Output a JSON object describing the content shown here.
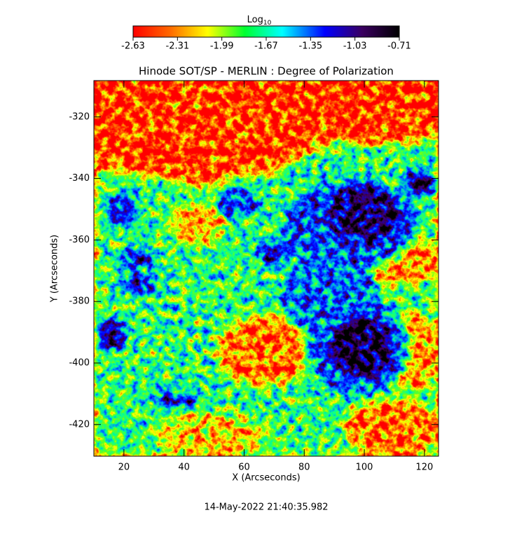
{
  "chart_data": {
    "type": "image",
    "title": "Hinode SOT/SP - MERLIN : Degree of Polarization",
    "x_label": "X (Arcseconds)",
    "y_label": "Y (Arcseconds)",
    "colorbar_label": "Log",
    "colorbar_label_sub": "10",
    "colorbar_lim": [
      -2.63,
      -0.71
    ],
    "colorbar_ticks": [
      -2.63,
      -2.31,
      -1.99,
      -1.67,
      -1.35,
      -1.03,
      -0.71
    ],
    "xlim": [
      10,
      124.7
    ],
    "xticks": [
      20,
      40,
      60,
      80,
      100,
      120
    ],
    "ylim": [
      -430.3,
      -308.2
    ],
    "yticks": [
      -420,
      -400,
      -380,
      -360,
      -340,
      -320
    ],
    "timestamp": "14-May-2022 21:40:35.982"
  }
}
